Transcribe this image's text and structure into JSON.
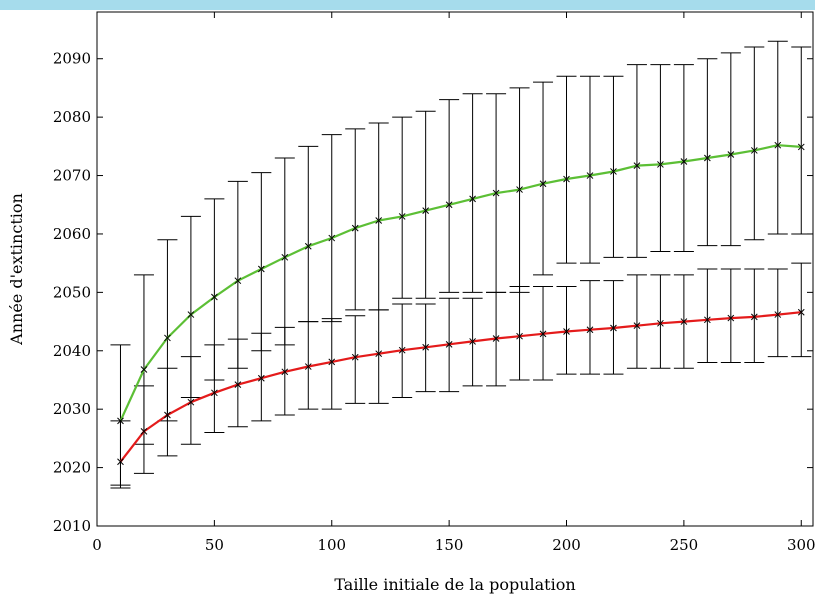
{
  "chart_data": {
    "type": "line",
    "title": "",
    "xlabel": "Taille initiale de la population",
    "ylabel": "Année d'extinction",
    "xlim": [
      0,
      305
    ],
    "ylim": [
      2010,
      2098
    ],
    "xticks": [
      0,
      50,
      100,
      150,
      200,
      250,
      300
    ],
    "yticks": [
      2010,
      2020,
      2030,
      2040,
      2050,
      2060,
      2070,
      2080,
      2090
    ],
    "grid": false,
    "legend": "none",
    "x": [
      10,
      20,
      30,
      40,
      50,
      60,
      70,
      80,
      90,
      100,
      110,
      120,
      130,
      140,
      150,
      160,
      170,
      180,
      190,
      200,
      210,
      220,
      230,
      240,
      250,
      260,
      270,
      280,
      290,
      300
    ],
    "series": [
      {
        "color": "#5cbf35",
        "values": [
          2028,
          2036.8,
          2042.2,
          2046.2,
          2049.2,
          2052,
          2054,
          2056,
          2057.9,
          2059.3,
          2061,
          2062.3,
          2063,
          2064,
          2065,
          2066,
          2067,
          2067.6,
          2068.6,
          2069.4,
          2070,
          2070.7,
          2071.7,
          2071.9,
          2072.4,
          2073,
          2073.6,
          2074.3,
          2075.2,
          2074.9
        ],
        "err_low": [
          2017,
          2024,
          2028,
          2032,
          2035,
          2037,
          2040,
          2041,
          2045,
          2045,
          2047,
          2047,
          2049,
          2049,
          2050,
          2050,
          2050,
          2050,
          2053,
          2055,
          2055,
          2056,
          2056,
          2057,
          2057,
          2058,
          2058,
          2059,
          2060,
          2060
        ],
        "err_high": [
          2041,
          2053,
          2059,
          2063,
          2066,
          2069,
          2070.5,
          2073,
          2075,
          2077,
          2078,
          2079,
          2080,
          2081,
          2083,
          2084,
          2084,
          2085,
          2086,
          2087,
          2087,
          2087,
          2089,
          2089,
          2089,
          2090,
          2091,
          2092,
          2093,
          2092
        ]
      },
      {
        "color": "#e41b1b",
        "values": [
          2021,
          2026.2,
          2029,
          2031.2,
          2032.8,
          2034.2,
          2035.3,
          2036.4,
          2037.3,
          2038.1,
          2038.9,
          2039.5,
          2040.1,
          2040.6,
          2041.1,
          2041.6,
          2042.1,
          2042.5,
          2042.9,
          2043.3,
          2043.6,
          2043.9,
          2044.3,
          2044.7,
          2045,
          2045.3,
          2045.6,
          2045.8,
          2046.2,
          2046.6
        ],
        "err_low": [
          2016.5,
          2019,
          2022,
          2024,
          2026,
          2027,
          2028,
          2029,
          2030,
          2030,
          2031,
          2031,
          2032,
          2033,
          2033,
          2034,
          2034,
          2035,
          2035,
          2036,
          2036,
          2036,
          2037,
          2037,
          2037,
          2038,
          2038,
          2038,
          2039,
          2039
        ],
        "err_high": [
          2028,
          2034,
          2037,
          2039,
          2041,
          2042,
          2043,
          2044,
          2045,
          2045.5,
          2046,
          2047,
          2048,
          2048,
          2049,
          2049,
          2050,
          2051,
          2051,
          2051,
          2052,
          2052,
          2053,
          2053,
          2053,
          2054,
          2054,
          2054,
          2054,
          2055
        ]
      }
    ],
    "colors": {
      "top_band": "#a6dcec",
      "axes": "#000000"
    }
  }
}
